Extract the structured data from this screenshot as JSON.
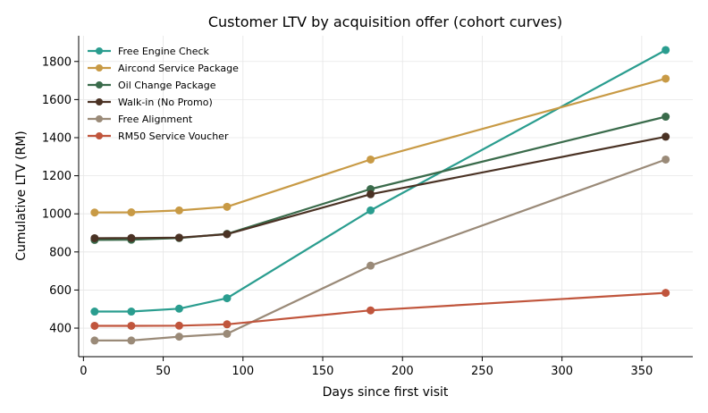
{
  "chart_data": {
    "type": "line",
    "title": "Customer LTV by acquisition offer (cohort curves)",
    "xlabel": "Days since first visit",
    "ylabel": "Cumulative LTV (RM)",
    "x": [
      7,
      30,
      60,
      90,
      180,
      365
    ],
    "xlim": [
      -3,
      382
    ],
    "ylim": [
      250,
      1935
    ],
    "xticks": [
      0,
      50,
      100,
      150,
      200,
      250,
      300,
      350
    ],
    "yticks": [
      400,
      600,
      800,
      1000,
      1200,
      1400,
      1600,
      1800
    ],
    "grid": true,
    "legend_position": "top-left",
    "series": [
      {
        "name": "Free Engine Check",
        "color": "#2a9d8f",
        "values": [
          487,
          487,
          502,
          557,
          1018,
          1860
        ]
      },
      {
        "name": "Aircond Service Package",
        "color": "#c89a45",
        "values": [
          1007,
          1008,
          1018,
          1037,
          1285,
          1710
        ]
      },
      {
        "name": "Oil Change Package",
        "color": "#3a6b4b",
        "values": [
          863,
          864,
          873,
          895,
          1130,
          1510
        ]
      },
      {
        "name": "Walk-in (No Promo)",
        "color": "#4a3224",
        "values": [
          872,
          873,
          875,
          893,
          1103,
          1405
        ]
      },
      {
        "name": "Free Alignment",
        "color": "#9a8a78",
        "values": [
          335,
          335,
          355,
          370,
          728,
          1285
        ]
      },
      {
        "name": "RM50 Service Voucher",
        "color": "#c0553c",
        "values": [
          412,
          412,
          413,
          420,
          493,
          585
        ]
      }
    ]
  }
}
